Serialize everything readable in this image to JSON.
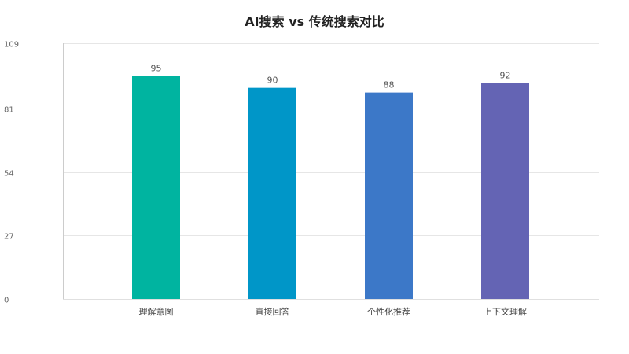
{
  "chart_data": {
    "type": "bar",
    "title": "AI搜索 vs 传统搜索对比",
    "xlabel": "",
    "ylabel": "",
    "categories": [
      "理解意图",
      "直接回答",
      "个性化推荐",
      "上下文理解"
    ],
    "values": [
      95,
      90,
      88,
      92
    ],
    "ylim": [
      0,
      109
    ],
    "yticks": [
      0,
      27,
      54,
      81,
      109
    ],
    "grid": true,
    "legend": "none",
    "colors": [
      "#00b4a0",
      "#0096c8",
      "#3c78c8",
      "#6464b4"
    ]
  }
}
